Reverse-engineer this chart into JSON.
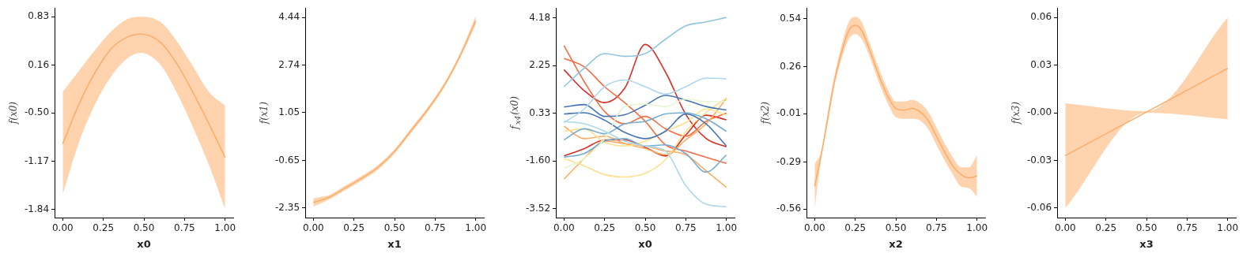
{
  "chart_data": [
    {
      "type": "line",
      "xlabel": "x0",
      "ylabel": "f(x0)",
      "x": [
        0,
        0.1,
        0.2,
        0.3,
        0.4,
        0.48,
        0.6,
        0.7,
        0.8,
        0.9,
        1
      ],
      "series": [
        {
          "color": "#fdae6b",
          "values": [
            -0.93,
            -0.38,
            0.06,
            0.39,
            0.55,
            0.59,
            0.48,
            0.19,
            -0.21,
            -0.65,
            -1.12
          ],
          "upper": [
            -0.21,
            0.08,
            0.37,
            0.63,
            0.8,
            0.83,
            0.76,
            0.5,
            0.15,
            -0.21,
            -0.4
          ],
          "lower": [
            -1.63,
            -0.91,
            -0.38,
            0.01,
            0.26,
            0.33,
            0.17,
            -0.21,
            -0.69,
            -1.22,
            -1.83
          ]
        }
      ],
      "xlim": [
        -0.05,
        1.05
      ],
      "ylim": [
        -1.95,
        0.95
      ],
      "xticks": [
        {
          "value": 0,
          "label": "0.00"
        },
        {
          "value": 0.25,
          "label": "0.25"
        },
        {
          "value": 0.5,
          "label": "0.50"
        },
        {
          "value": 0.75,
          "label": "0.75"
        },
        {
          "value": 1,
          "label": "1.00"
        }
      ],
      "yticks": [
        0.83,
        0.16,
        {
          "value": -0.5,
          "label": "-0.50"
        },
        -1.17,
        -1.84
      ],
      "grid": false,
      "legend": false
    },
    {
      "type": "line",
      "xlabel": "x1",
      "ylabel": "f(x1)",
      "x": [
        0,
        0.1,
        0.2,
        0.3,
        0.4,
        0.5,
        0.6,
        0.7,
        0.8,
        0.9,
        1
      ],
      "series": [
        {
          "color": "#fdae6b",
          "values": [
            -2.15,
            -1.96,
            -1.62,
            -1.28,
            -0.89,
            -0.33,
            0.4,
            1.13,
            1.97,
            3.04,
            4.33
          ],
          "upper": [
            -2.0,
            -1.88,
            -1.54,
            -1.2,
            -0.81,
            -0.25,
            0.48,
            1.21,
            2.05,
            3.13,
            4.5
          ],
          "lower": [
            -2.3,
            -2.04,
            -1.7,
            -1.36,
            -0.97,
            -0.41,
            0.32,
            1.05,
            1.89,
            2.95,
            4.2
          ]
        }
      ],
      "xlim": [
        -0.05,
        1.05
      ],
      "ylim": [
        -2.69,
        4.78
      ],
      "xticks": [
        {
          "value": 0,
          "label": "0.00"
        },
        {
          "value": 0.25,
          "label": "0.25"
        },
        {
          "value": 0.5,
          "label": "0.50"
        },
        {
          "value": 0.75,
          "label": "0.75"
        },
        {
          "value": 1,
          "label": "1.00"
        }
      ],
      "yticks": [
        4.44,
        2.74,
        1.05,
        -0.65,
        -2.35
      ],
      "grid": false,
      "legend": false
    },
    {
      "type": "line",
      "xlabel": "x0",
      "ylabel": "f$_{x4}$(x0)",
      "x": [
        0,
        0.125,
        0.25,
        0.375,
        0.5,
        0.625,
        0.75,
        0.875,
        1
      ],
      "series": [
        {
          "color": "#92c5de",
          "values": [
            1.4,
            2.15,
            2.74,
            2.63,
            2.74,
            3.32,
            3.86,
            4.02,
            4.2
          ]
        },
        {
          "color": "#abd9e9",
          "values": [
            -0.05,
            0.5,
            1.4,
            1.67,
            1.4,
            1.1,
            1.4,
            1.75,
            1.72
          ]
        },
        {
          "color": "#abd9e9",
          "values": [
            0.0,
            -0.1,
            -0.4,
            -0.8,
            -1.0,
            -1.2,
            -2.6,
            -3.35,
            -3.45
          ]
        },
        {
          "color": "#e6f5d0",
          "values": [
            -1.9,
            -1.5,
            -0.7,
            0.6,
            0.7,
            0.6,
            0.9,
            0.8,
            0.8
          ]
        },
        {
          "color": "#4575b4",
          "values": [
            0.58,
            0.68,
            0.2,
            0.27,
            0.65,
            1.05,
            0.86,
            0.6,
            0.46
          ]
        },
        {
          "color": "#4575b4",
          "values": [
            0.3,
            0.35,
            0.05,
            -0.45,
            -0.7,
            -0.4,
            0.3,
            -0.1,
            -1.0
          ]
        },
        {
          "color": "#74add1",
          "values": [
            -0.75,
            -0.3,
            -0.5,
            -0.1,
            0.0,
            0.3,
            0.35,
            0.1,
            -0.4
          ]
        },
        {
          "color": "#74add1",
          "values": [
            -1.45,
            -1.3,
            -0.8,
            -0.7,
            -1.0,
            -0.95,
            -1.3,
            -2.05,
            -1.36
          ]
        },
        {
          "color": "#fee090",
          "values": [
            -1.5,
            -1.8,
            -2.15,
            -2.25,
            -2.1,
            -1.55,
            -0.4,
            0.35,
            0.95
          ]
        },
        {
          "color": "#fee090",
          "values": [
            -0.4,
            -0.3,
            -0.85,
            -1.0,
            -0.8,
            -0.4,
            -0.05,
            0.5,
            0.25
          ]
        },
        {
          "color": "#fdae61",
          "values": [
            -2.33,
            -1.5,
            -0.8,
            -0.9,
            -1.0,
            -1.2,
            -1.35,
            -2.0,
            -2.67
          ]
        },
        {
          "color": "#fdae61",
          "values": [
            -0.2,
            -0.7,
            -0.6,
            -0.9,
            -1.1,
            -1.35,
            -0.75,
            -0.1,
            0.92
          ]
        },
        {
          "color": "#f46d43",
          "values": [
            3.06,
            1.6,
            0.4,
            -0.1,
            0.2,
            -0.3,
            -0.6,
            0.0,
            0.33
          ]
        },
        {
          "color": "#f46d43",
          "values": [
            2.55,
            2.2,
            1.4,
            0.75,
            0.0,
            -0.95,
            -1.2,
            -1.45,
            -1.7
          ]
        },
        {
          "color": "#d73027",
          "values": [
            2.09,
            1.24,
            0.76,
            1.35,
            3.11,
            1.99,
            0.28,
            -0.69,
            -1.03
          ]
        },
        {
          "color": "#d73027",
          "values": [
            -1.4,
            -1.1,
            -0.75,
            -0.75,
            -1.05,
            -1.4,
            -0.55,
            0.25,
            0.06
          ]
        }
      ],
      "xlim": [
        -0.05,
        1.05
      ],
      "ylim": [
        -3.89,
        4.58
      ],
      "xticks": [
        {
          "value": 0,
          "label": "0.00"
        },
        {
          "value": 0.25,
          "label": "0.25"
        },
        {
          "value": 0.5,
          "label": "0.50"
        },
        {
          "value": 0.75,
          "label": "0.75"
        },
        {
          "value": 1,
          "label": "1.00"
        }
      ],
      "yticks": [
        4.18,
        2.25,
        0.33,
        {
          "value": -1.6,
          "label": "-1.60"
        },
        -3.52
      ],
      "grid": false,
      "legend": false
    },
    {
      "type": "line",
      "xlabel": "x2",
      "ylabel": "f(x2)",
      "x": [
        0,
        0.04,
        0.08,
        0.12,
        0.17,
        0.21,
        0.25,
        0.29,
        0.33,
        0.4,
        0.45,
        0.5,
        0.55,
        0.6,
        0.65,
        0.7,
        0.75,
        0.8,
        0.85,
        0.9,
        0.95,
        1
      ],
      "series": [
        {
          "color": "#fdae6b",
          "values": [
            -0.43,
            -0.25,
            -0.04,
            0.17,
            0.36,
            0.47,
            0.5,
            0.47,
            0.38,
            0.2,
            0.09,
            0.02,
            0.01,
            0.02,
            0.0,
            -0.05,
            -0.14,
            -0.23,
            -0.31,
            -0.36,
            -0.38,
            -0.37
          ],
          "upper": [
            -0.3,
            -0.23,
            -0.01,
            0.2,
            0.4,
            0.52,
            0.55,
            0.52,
            0.42,
            0.24,
            0.13,
            0.06,
            0.06,
            0.07,
            0.05,
            0.0,
            -0.09,
            -0.18,
            -0.26,
            -0.32,
            -0.32,
            -0.25
          ],
          "lower": [
            -0.56,
            -0.27,
            -0.07,
            0.14,
            0.32,
            0.42,
            0.45,
            0.42,
            0.34,
            0.16,
            0.05,
            -0.03,
            -0.04,
            -0.04,
            -0.05,
            -0.1,
            -0.19,
            -0.28,
            -0.36,
            -0.43,
            -0.44,
            -0.49
          ]
        }
      ],
      "xlim": [
        -0.05,
        1.05
      ],
      "ylim": [
        -0.61,
        0.6
      ],
      "xticks": [
        {
          "value": 0,
          "label": "0.00"
        },
        {
          "value": 0.25,
          "label": "0.25"
        },
        {
          "value": 0.5,
          "label": "0.50"
        },
        {
          "value": 0.75,
          "label": "0.75"
        },
        {
          "value": 1,
          "label": "1.00"
        }
      ],
      "yticks": [
        0.54,
        0.26,
        -0.01,
        -0.29,
        -0.56
      ],
      "grid": false,
      "legend": false
    },
    {
      "type": "line",
      "xlabel": "x3",
      "ylabel": "f(x3)",
      "x": [
        0,
        0.5,
        1
      ],
      "series": [
        {
          "color": "#fdae6b",
          "values": [
            -0.027,
            0.0005,
            0.028
          ],
          "upper": [
            0.006,
            0.001,
            0.06
          ],
          "lower": [
            -0.06,
            0,
            -0.004
          ]
        }
      ],
      "xlim": [
        -0.05,
        1.05
      ],
      "ylim": [
        -0.066,
        0.066
      ],
      "xticks": [
        {
          "value": 0,
          "label": "0.00"
        },
        {
          "value": 0.25,
          "label": "0.25"
        },
        {
          "value": 0.5,
          "label": "0.50"
        },
        {
          "value": 0.75,
          "label": "0.75"
        },
        {
          "value": 1,
          "label": "1.00"
        }
      ],
      "yticks": [
        0.06,
        0.03,
        {
          "value": 0,
          "label": "-0.00"
        },
        -0.03,
        -0.06
      ],
      "grid": false,
      "legend": false
    }
  ]
}
